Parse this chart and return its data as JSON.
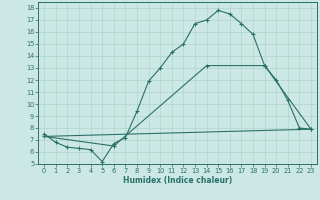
{
  "xlabel": "Humidex (Indice chaleur)",
  "bg_color": "#cce8e4",
  "grid_color": "#b0d4cc",
  "line_color": "#2a7068",
  "xlim": [
    -0.5,
    23.5
  ],
  "ylim": [
    5,
    18.5
  ],
  "xticks": [
    0,
    1,
    2,
    3,
    4,
    5,
    6,
    7,
    8,
    9,
    10,
    11,
    12,
    13,
    14,
    15,
    16,
    17,
    18,
    19,
    20,
    21,
    22,
    23
  ],
  "yticks": [
    5,
    6,
    7,
    8,
    9,
    10,
    11,
    12,
    13,
    14,
    15,
    16,
    17,
    18
  ],
  "line1_x": [
    0,
    1,
    2,
    3,
    4,
    5,
    6,
    7,
    8,
    9,
    10,
    11,
    12,
    13,
    14,
    15,
    16,
    17,
    18,
    19,
    20,
    21,
    22,
    23
  ],
  "line1_y": [
    7.5,
    6.8,
    6.4,
    6.3,
    6.2,
    5.2,
    6.7,
    7.2,
    9.4,
    11.9,
    13.0,
    14.3,
    15.0,
    16.7,
    17.0,
    17.8,
    17.5,
    16.7,
    15.8,
    13.2,
    12.0,
    10.3,
    8.0,
    7.9
  ],
  "line2_x": [
    0,
    23
  ],
  "line2_y": [
    7.3,
    7.9
  ],
  "line3_x": [
    0,
    6,
    14,
    19,
    23
  ],
  "line3_y": [
    7.3,
    6.5,
    13.2,
    13.2,
    7.9
  ]
}
